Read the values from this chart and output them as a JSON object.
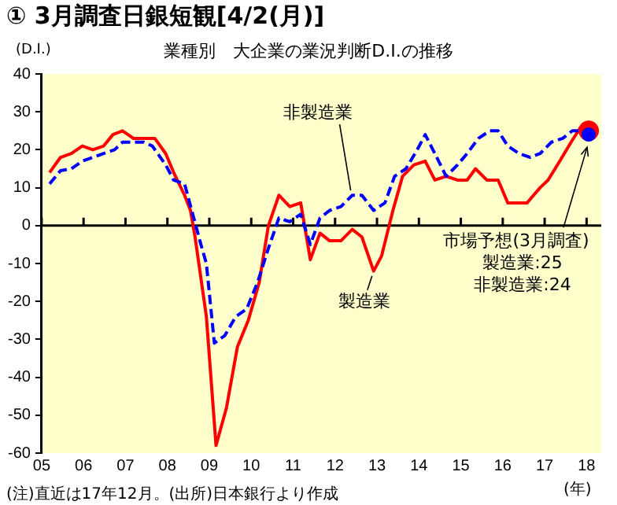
{
  "chart_data": {
    "type": "line",
    "title": "① 3月調査日銀短観[4/2(月)]",
    "subtitle": "業種別　大企業の業況判断D.I.の推移",
    "ylabel": "(D.I.)",
    "xlabel": "(年)",
    "xlim": [
      2005,
      2018.35
    ],
    "ylim": [
      -60,
      40
    ],
    "xticks": [
      {
        "value": 2005,
        "label": "05"
      },
      {
        "value": 2006,
        "label": "06"
      },
      {
        "value": 2007,
        "label": "07"
      },
      {
        "value": 2008,
        "label": "08"
      },
      {
        "value": 2009,
        "label": "09"
      },
      {
        "value": 2010,
        "label": "10"
      },
      {
        "value": 2011,
        "label": "11"
      },
      {
        "value": 2012,
        "label": "12"
      },
      {
        "value": 2013,
        "label": "13"
      },
      {
        "value": 2014,
        "label": "14"
      },
      {
        "value": 2015,
        "label": "15"
      },
      {
        "value": 2016,
        "label": "16"
      },
      {
        "value": 2017,
        "label": "17"
      },
      {
        "value": 2018,
        "label": "18"
      }
    ],
    "yticks": [
      -60,
      -50,
      -40,
      -30,
      -20,
      -10,
      0,
      10,
      20,
      30,
      40
    ],
    "grid": false,
    "legend": false,
    "marker": "none",
    "ref_lines": [
      {
        "axis": "y",
        "value": 0,
        "color": "#000000",
        "line_style": "solid"
      }
    ],
    "series": [
      {
        "name": "製造業",
        "color": "#ff0000",
        "line_style": "solid",
        "x": [
          2005.19,
          2005.45,
          2005.71,
          2005.97,
          2006.22,
          2006.48,
          2006.7,
          2006.93,
          2007.19,
          2007.44,
          2007.7,
          2007.96,
          2008.15,
          2008.41,
          2008.55,
          2008.66,
          2008.93,
          2009.16,
          2009.41,
          2009.67,
          2009.93,
          2010.19,
          2010.41,
          2010.66,
          2010.92,
          2011.18,
          2011.41,
          2011.64,
          2011.87,
          2012.14,
          2012.41,
          2012.64,
          2012.92,
          2013.11,
          2013.38,
          2013.61,
          2013.88,
          2014.15,
          2014.38,
          2014.65,
          2014.92,
          2015.15,
          2015.35,
          2015.62,
          2015.89,
          2016.12,
          2016.39,
          2016.58,
          2016.89,
          2017.08,
          2017.36,
          2017.63,
          2017.86
        ],
        "values": [
          14,
          18,
          19,
          21,
          20,
          21,
          24,
          25,
          23,
          23,
          23,
          19,
          14,
          8,
          4,
          -3,
          -24,
          -58,
          -48,
          -32,
          -25,
          -15,
          0,
          8,
          5,
          6,
          -9,
          -2,
          -4,
          -4,
          -1,
          -3,
          -12,
          -8,
          4,
          13,
          16,
          17,
          12,
          13,
          12,
          12,
          15,
          12,
          12,
          6,
          6,
          6,
          10,
          12,
          17,
          22,
          26
        ]
      },
      {
        "name": "非製造業",
        "color": "#0000ff",
        "line_style": "dashed",
        "x": [
          2005.19,
          2005.45,
          2005.71,
          2005.97,
          2006.22,
          2006.48,
          2006.74,
          2006.93,
          2007.19,
          2007.44,
          2007.64,
          2007.96,
          2008.15,
          2008.41,
          2008.8,
          2008.93,
          2009.12,
          2009.37,
          2009.63,
          2009.89,
          2010.15,
          2010.41,
          2010.66,
          2010.92,
          2011.18,
          2011.41,
          2011.64,
          2011.87,
          2012.14,
          2012.41,
          2012.64,
          2012.92,
          2013.19,
          2013.42,
          2013.69,
          2013.96,
          2014.15,
          2014.38,
          2014.65,
          2014.92,
          2015.15,
          2015.42,
          2015.69,
          2015.89,
          2016.12,
          2016.39,
          2016.66,
          2016.89,
          2017.16,
          2017.43,
          2017.66,
          2017.86
        ],
        "values": [
          11,
          14.5,
          15,
          17,
          18,
          19,
          20,
          22,
          22,
          22,
          21,
          16,
          12,
          11,
          -5,
          -10,
          -31,
          -29,
          -24,
          -22,
          -15,
          -6,
          2,
          1,
          3,
          -5,
          2,
          4,
          5,
          8,
          8,
          4,
          6,
          13,
          15,
          20,
          24,
          19,
          13,
          16,
          19,
          23,
          25,
          25,
          21,
          19,
          18,
          19,
          22,
          23,
          25,
          25
        ]
      },
      {
        "type": "scatter",
        "color": "#ff0000",
        "marker": "circle",
        "x": [
          2018.05
        ],
        "values": [
          25
        ]
      },
      {
        "type": "scatter",
        "color": "#0000ff",
        "marker": "circle",
        "x": [
          2018.05
        ],
        "values": [
          24
        ]
      }
    ],
    "annotations": [
      {
        "text": "市場予想(3月調査)\n製造業:25\n非製造業:24",
        "x": 2018.05,
        "y": 24
      },
      "(注)直近は17年12月。(出所)日本銀行より作成"
    ]
  }
}
